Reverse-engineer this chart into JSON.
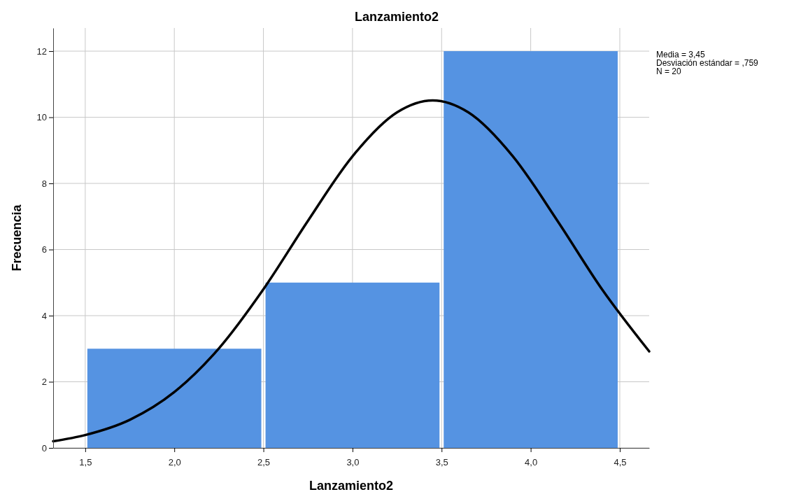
{
  "chart_data": {
    "type": "histogram",
    "title": "Lanzamiento2",
    "xlabel": "Lanzamiento2",
    "ylabel": "Frecuencia",
    "bins": [
      1.5,
      2.5,
      3.5,
      4.5
    ],
    "series": [
      {
        "color": "#5593e2",
        "values": [
          3,
          5,
          12
        ]
      },
      {
        "type": "line",
        "color": "#000000",
        "x": [
          1.32,
          1.5,
          1.75,
          2.0,
          2.25,
          2.5,
          2.75,
          3.0,
          3.25,
          3.45,
          3.65,
          3.9,
          4.15,
          4.4,
          4.665
        ],
        "values": [
          0.2,
          0.39,
          0.85,
          1.69,
          3.01,
          4.8,
          6.87,
          8.82,
          10.15,
          10.51,
          10.15,
          8.82,
          6.87,
          4.8,
          2.92
        ]
      }
    ],
    "xlim": [
      1.32,
      4.665
    ],
    "ylim": [
      0,
      12.7
    ],
    "xticks": [
      {
        "value": 1.5,
        "label": "1,5"
      },
      {
        "value": 2.0,
        "label": "2,0"
      },
      {
        "value": 2.5,
        "label": "2,5"
      },
      {
        "value": 3.0,
        "label": "3,0"
      },
      {
        "value": 3.5,
        "label": "3,5"
      },
      {
        "value": 4.0,
        "label": "4,0"
      },
      {
        "value": 4.5,
        "label": "4,5"
      }
    ],
    "yticks": [
      0,
      2,
      4,
      6,
      8,
      10,
      12
    ],
    "grid": true,
    "annotations": [
      "Media = 3,45",
      "Desviación estándar = ,759",
      "N = 20"
    ]
  }
}
